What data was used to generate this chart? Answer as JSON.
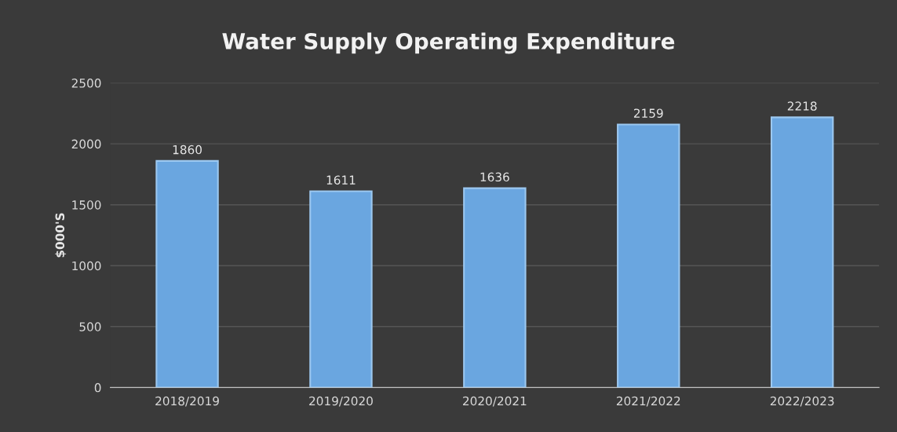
{
  "chart_data": {
    "type": "bar",
    "title": "Water Supply Operating Expenditure",
    "ylabel": "$000'S",
    "categories": [
      "2018/2019",
      "2019/2020",
      "2020/2021",
      "2021/2022",
      "2022/2023"
    ],
    "values": [
      1860,
      1611,
      1636,
      2159,
      2218
    ],
    "color": "#6aa6e0",
    "ylim": [
      0,
      2500
    ],
    "yticks": [
      0,
      500,
      1000,
      1500,
      2000,
      2500
    ],
    "grid": "y",
    "data_labels": true
  }
}
